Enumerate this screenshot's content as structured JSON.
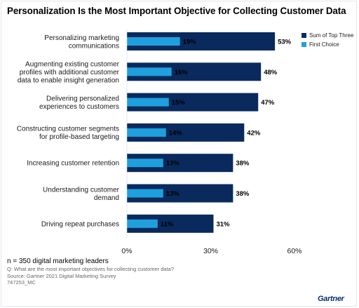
{
  "title": "Personalization Is the Most Important Objective for Collecting Customer Data",
  "colors": {
    "top_three": "#0a2a5e",
    "first_choice": "#1fa0dc"
  },
  "legend": [
    {
      "label": "Sum of Top Three",
      "color": "#0a2a5e"
    },
    {
      "label": "First Choice",
      "color": "#1fa0dc"
    }
  ],
  "chart_data": {
    "type": "bar",
    "orientation": "horizontal",
    "categories": [
      [
        "Personalizing marketing",
        "communications"
      ],
      [
        "Augmenting existing customer",
        "profiles with additional customer",
        "data to enable insight generation"
      ],
      [
        "Delivering personalized",
        "experiences to customers"
      ],
      [
        "Constructing customer segments",
        "for profile-based targeting"
      ],
      [
        "Increasing customer retention"
      ],
      [
        "Understanding customer",
        "demand"
      ],
      [
        "Driving repeat purchases"
      ]
    ],
    "series": [
      {
        "name": "Sum of Top Three",
        "values": [
          53,
          48,
          47,
          42,
          38,
          38,
          31
        ],
        "labels": [
          "53%",
          "48%",
          "47%",
          "42%",
          "38%",
          "38%",
          "31%"
        ]
      },
      {
        "name": "First Choice",
        "values": [
          19,
          16,
          15,
          14,
          13,
          13,
          11
        ],
        "labels": [
          "19%",
          "16%",
          "15%",
          "14%",
          "13%",
          "13%",
          "11%"
        ]
      }
    ],
    "xlim": [
      0,
      60
    ],
    "xticks": [
      "0%",
      "30%",
      "60%"
    ],
    "xlabel": "",
    "ylabel": "",
    "legend_position": "top-right",
    "grid": false
  },
  "footer": {
    "n": "n = 350 digital marketing leaders",
    "q": "Q: What are the most important objectives for collecting customer data?",
    "source": "Source: Gartner 2021 Digital Marketing Survey",
    "id": "747253_MC"
  },
  "logo": "Gartner"
}
